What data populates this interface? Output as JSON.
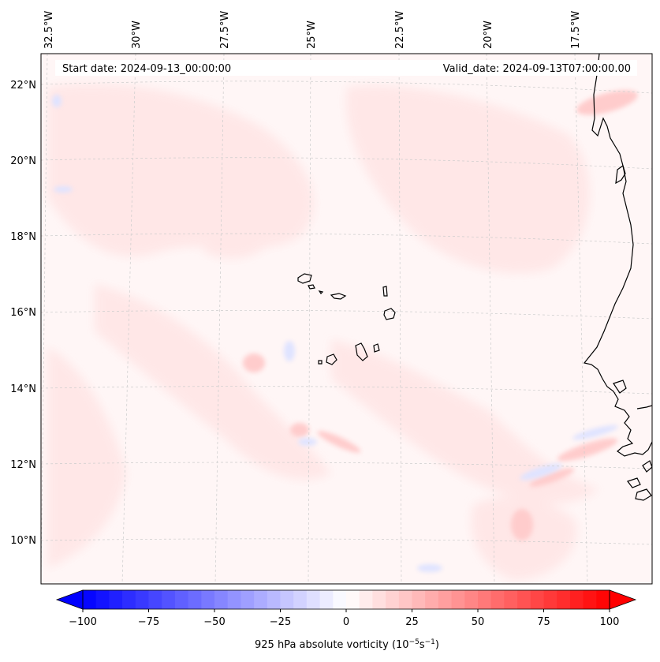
{
  "header": {
    "start_date": "Start date: 2024-09-13_00:00:00",
    "valid_date": "Valid_date: 2024-09-13T07:00:00.00"
  },
  "lon_labels": [
    "32.5°W",
    "30°W",
    "27.5°W",
    "25°W",
    "22.5°W",
    "20°W",
    "17.5°W"
  ],
  "lat_labels": [
    "22°N",
    "20°N",
    "18°N",
    "16°N",
    "14°N",
    "12°N",
    "10°N"
  ],
  "colorbar": {
    "ticks": [
      "−100",
      "−75",
      "−50",
      "−25",
      "0",
      "25",
      "50",
      "75",
      "100"
    ],
    "label_main": "925 hPa absolute vorticity (10",
    "label_exp1": "−5",
    "label_mid": "s",
    "label_exp2": "−1",
    "label_end": ")",
    "min": -100,
    "max": 100,
    "step": 5,
    "neg_color": "#0000ff",
    "pos_color": "#ff0000"
  },
  "map": {
    "ocean_color": "#fff8f8",
    "coast_color": "#000000",
    "grid_color": "#cccccc"
  }
}
